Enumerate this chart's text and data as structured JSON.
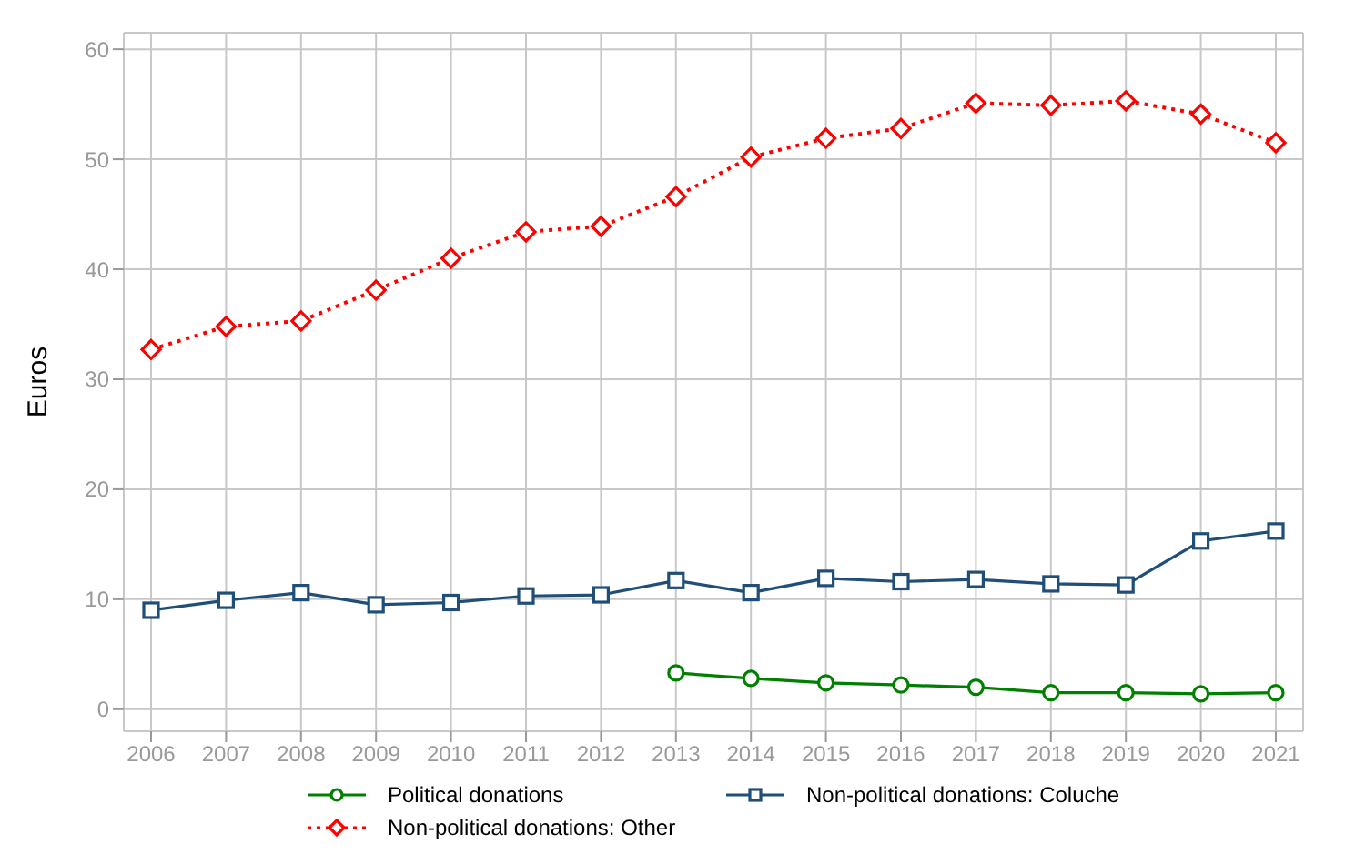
{
  "chart_data": {
    "type": "line",
    "ylabel": "Euros",
    "categories": [
      "2006",
      "2007",
      "2008",
      "2009",
      "2010",
      "2011",
      "2012",
      "2013",
      "2014",
      "2015",
      "2016",
      "2017",
      "2018",
      "2019",
      "2020",
      "2021"
    ],
    "series": [
      {
        "name": "Political donations",
        "color": "#008000",
        "marker": "circle",
        "line_style": "solid",
        "values": [
          null,
          null,
          null,
          null,
          null,
          null,
          null,
          3.3,
          2.8,
          2.4,
          2.2,
          2.0,
          1.5,
          1.5,
          1.4,
          1.5
        ]
      },
      {
        "name": "Non-political donations: Coluche",
        "color": "#1f4e79",
        "marker": "square",
        "line_style": "solid",
        "values": [
          9.0,
          9.9,
          10.6,
          9.5,
          9.7,
          10.3,
          10.4,
          11.7,
          10.6,
          11.9,
          11.6,
          11.8,
          11.4,
          11.3,
          15.3,
          16.2
        ]
      },
      {
        "name": "Non-political donations: Other",
        "color": "#ff0000",
        "marker": "diamond",
        "line_style": "dotted",
        "values": [
          32.7,
          34.8,
          35.3,
          38.1,
          41.0,
          43.4,
          43.9,
          46.6,
          50.2,
          51.9,
          52.8,
          55.1,
          54.9,
          55.3,
          54.1,
          51.5
        ]
      }
    ],
    "ylim": [
      -2,
      61.5
    ],
    "yticks": [
      0,
      10,
      20,
      30,
      40,
      50,
      60
    ],
    "grid": true,
    "legend": "bottom"
  }
}
